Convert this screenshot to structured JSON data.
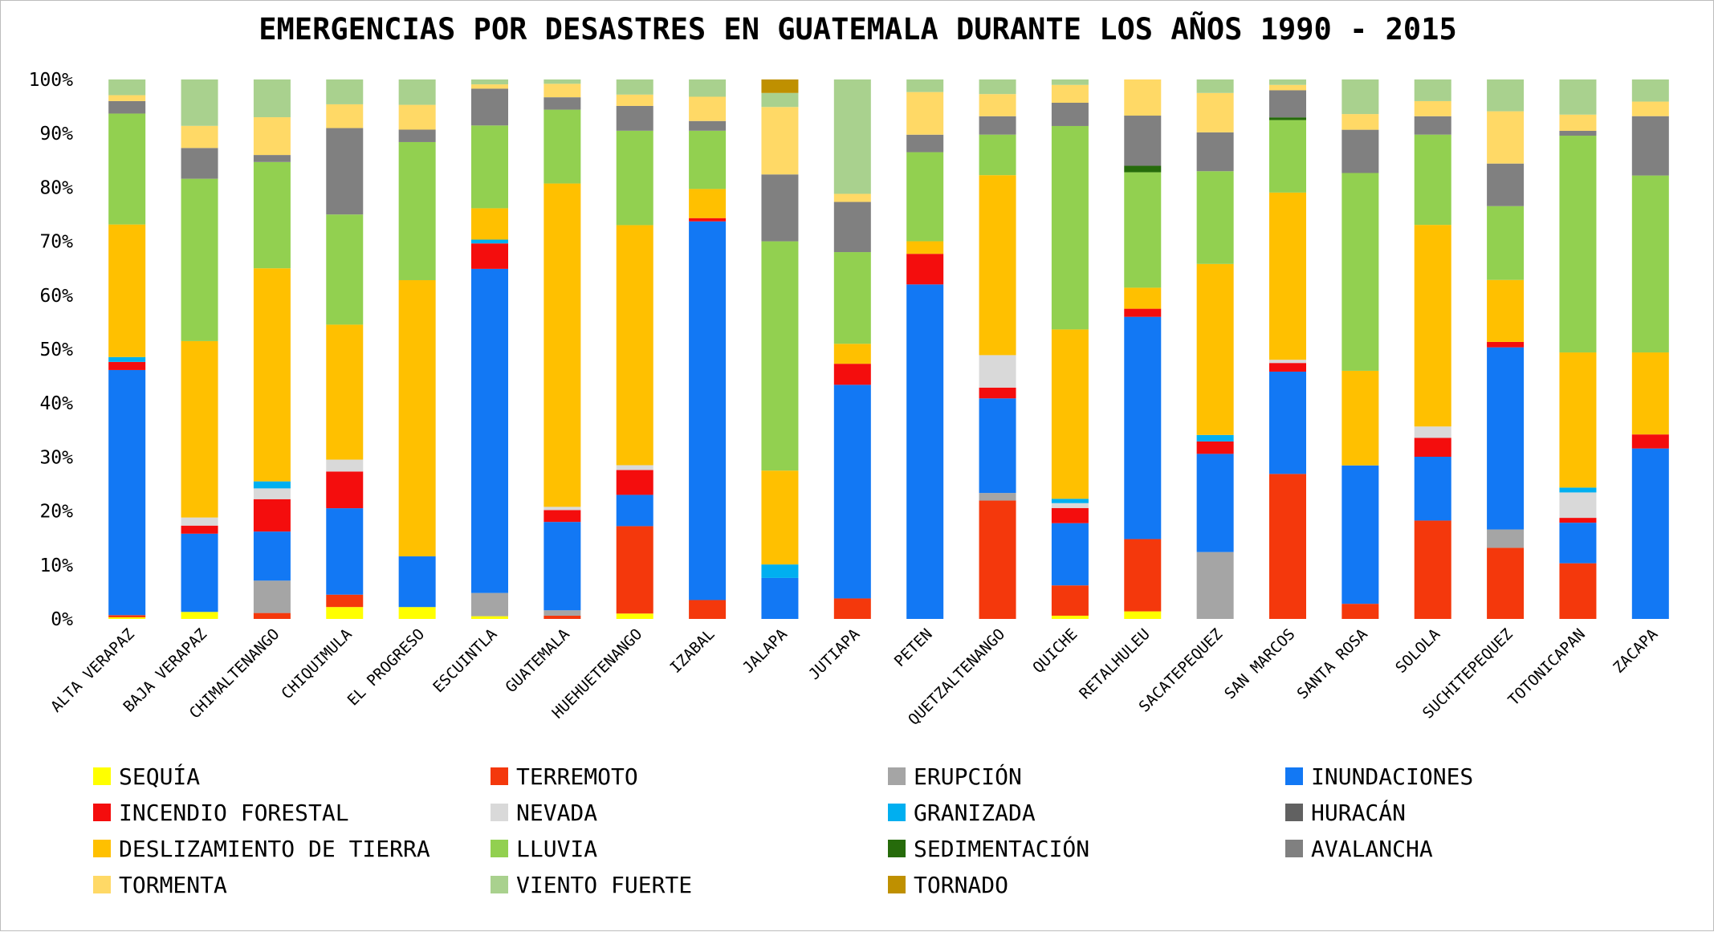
{
  "chart_data": {
    "type": "bar",
    "stacked": true,
    "normalized": true,
    "title": "EMERGENCIAS POR DESASTRES EN GUATEMALA DURANTE LOS AÑOS 1990 - 2015",
    "xlabel": "",
    "ylabel": "",
    "ylim": [
      0,
      100
    ],
    "yticks": [
      "0%",
      "10%",
      "20%",
      "30%",
      "40%",
      "50%",
      "60%",
      "70%",
      "80%",
      "90%",
      "100%"
    ],
    "grid": false,
    "legend_position": "bottom",
    "categories": [
      "ALTA VERAPAZ",
      "BAJA VERAPAZ",
      "CHIMALTENANGO",
      "CHIQUIMULA",
      "EL PROGRESO",
      "ESCUINTLA",
      "GUATEMALA",
      "HUEHUETENANGO",
      "IZABAL",
      "JALAPA",
      "JUTIAPA",
      "PETEN",
      "QUETZALTENANGO",
      "QUICHE",
      "RETALHULEU",
      "SACATEPEQUEZ",
      "SAN MARCOS",
      "SANTA ROSA",
      "SOLOLA",
      "SUCHITEPEQUEZ",
      "TOTONICAPAN",
      "ZACAPA"
    ],
    "series": [
      {
        "name": "SEQUÍA",
        "color": "#ffff00",
        "values": [
          0.3,
          1.3,
          0,
          2.2,
          2.2,
          0.5,
          0,
          1.0,
          0,
          0,
          0,
          0,
          0,
          0.6,
          1.4,
          0,
          0,
          0,
          0,
          0,
          0,
          0
        ]
      },
      {
        "name": "TERREMOTO",
        "color": "#f4380c",
        "values": [
          0.4,
          0,
          1.1,
          2.3,
          0,
          0,
          0.6,
          16.2,
          3.5,
          0,
          3.8,
          0,
          21.9,
          5.6,
          13.4,
          0,
          26.8,
          2.8,
          18.2,
          13.2,
          10.3,
          0
        ]
      },
      {
        "name": "ERUPCIÓN",
        "color": "#a5a5a5",
        "values": [
          0,
          0,
          6.0,
          0,
          0,
          4.3,
          1.0,
          0,
          0,
          0,
          0,
          0,
          1.4,
          0,
          0,
          12.4,
          0,
          0,
          0,
          3.4,
          0,
          0
        ]
      },
      {
        "name": "INUNDACIONES",
        "color": "#1278f4",
        "values": [
          45.3,
          14.5,
          9.1,
          16.0,
          9.4,
          59.9,
          16.4,
          5.8,
          70.2,
          7.6,
          39.6,
          61.2,
          17.5,
          11.5,
          41.2,
          18.2,
          18.9,
          25.6,
          11.8,
          33.8,
          7.5,
          31.6
        ]
      },
      {
        "name": "INCENDIO FORESTAL",
        "color": "#f40d0d",
        "values": [
          1.5,
          1.5,
          6.0,
          6.8,
          0,
          4.7,
          2.2,
          4.6,
          0.6,
          0,
          3.9,
          5.6,
          2.0,
          2.8,
          1.5,
          2.3,
          1.6,
          0,
          3.5,
          1.0,
          0.9,
          2.6
        ]
      },
      {
        "name": "NEVADA",
        "color": "#d9d9d9",
        "values": [
          0,
          1.5,
          2.0,
          2.2,
          0,
          0,
          0.6,
          0.9,
          0,
          0,
          0,
          0,
          6.0,
          0.9,
          0,
          0,
          0.6,
          0,
          2.1,
          0,
          4.7,
          0
        ]
      },
      {
        "name": "GRANIZADA",
        "color": "#00aff0",
        "values": [
          0.9,
          0,
          1.3,
          0,
          0,
          0.7,
          0,
          0,
          0,
          2.5,
          0,
          0,
          0,
          0.8,
          0,
          1.2,
          0,
          0,
          0,
          0,
          0.9,
          0
        ]
      },
      {
        "name": "HURACÁN",
        "color": "#616161",
        "values": [
          0,
          0,
          0,
          0,
          0,
          0,
          0,
          0,
          0,
          0,
          0,
          0,
          0,
          0,
          0,
          0,
          0,
          0,
          0,
          0,
          0,
          0
        ]
      },
      {
        "name": "DESLIZAMIENTO DE TIERRA",
        "color": "#ffc000",
        "values": [
          24.5,
          32.7,
          39.5,
          25.0,
          51.2,
          5.8,
          60.0,
          44.5,
          5.4,
          17.4,
          3.7,
          2.3,
          33.3,
          31.3,
          3.9,
          31.7,
          30.9,
          17.5,
          37.3,
          11.5,
          25.0,
          15.2
        ]
      },
      {
        "name": "LLUVIA",
        "color": "#92d050",
        "values": [
          20.5,
          30.1,
          19.7,
          20.4,
          25.6,
          15.3,
          13.7,
          17.5,
          10.8,
          42.5,
          17.0,
          16.3,
          7.5,
          37.6,
          21.4,
          17.2,
          13.4,
          36.6,
          16.7,
          13.7,
          40.1,
          32.8
        ]
      },
      {
        "name": "SEDIMENTACIÓN",
        "color": "#266b0b",
        "values": [
          0,
          0,
          0,
          0,
          0,
          0,
          0,
          0,
          0,
          0,
          0,
          0,
          0,
          0,
          1.2,
          0,
          0.5,
          0,
          0,
          0,
          0,
          0
        ]
      },
      {
        "name": "AVALANCHA",
        "color": "#808080",
        "values": [
          2.3,
          5.7,
          1.3,
          16.0,
          2.3,
          6.8,
          2.3,
          4.6,
          1.8,
          12.4,
          9.3,
          3.2,
          3.4,
          4.3,
          9.3,
          7.2,
          5.0,
          8.0,
          3.4,
          7.9,
          0.9,
          11.0
        ]
      },
      {
        "name": "TORMENTA",
        "color": "#ffd966",
        "values": [
          1.1,
          4.1,
          7.0,
          4.4,
          4.6,
          0.8,
          2.5,
          2.1,
          4.5,
          12.5,
          1.5,
          7.8,
          4.1,
          3.3,
          6.7,
          7.3,
          1.0,
          2.9,
          2.8,
          9.7,
          3.0,
          2.7
        ]
      },
      {
        "name": "VIENTO FUERTE",
        "color": "#a9d18e",
        "values": [
          2.9,
          8.6,
          7.0,
          4.6,
          4.7,
          0.9,
          0.8,
          2.8,
          3.2,
          2.6,
          21.2,
          2.3,
          2.7,
          1.0,
          0,
          2.5,
          1.0,
          6.4,
          4.0,
          5.9,
          6.5,
          4.1
        ]
      },
      {
        "name": "TORNADO",
        "color": "#bf9000",
        "values": [
          0,
          0,
          0,
          0,
          0,
          0,
          0,
          0,
          0,
          2.5,
          0,
          0,
          0,
          0,
          0,
          0,
          0,
          0,
          0,
          0,
          0,
          0
        ]
      }
    ]
  }
}
